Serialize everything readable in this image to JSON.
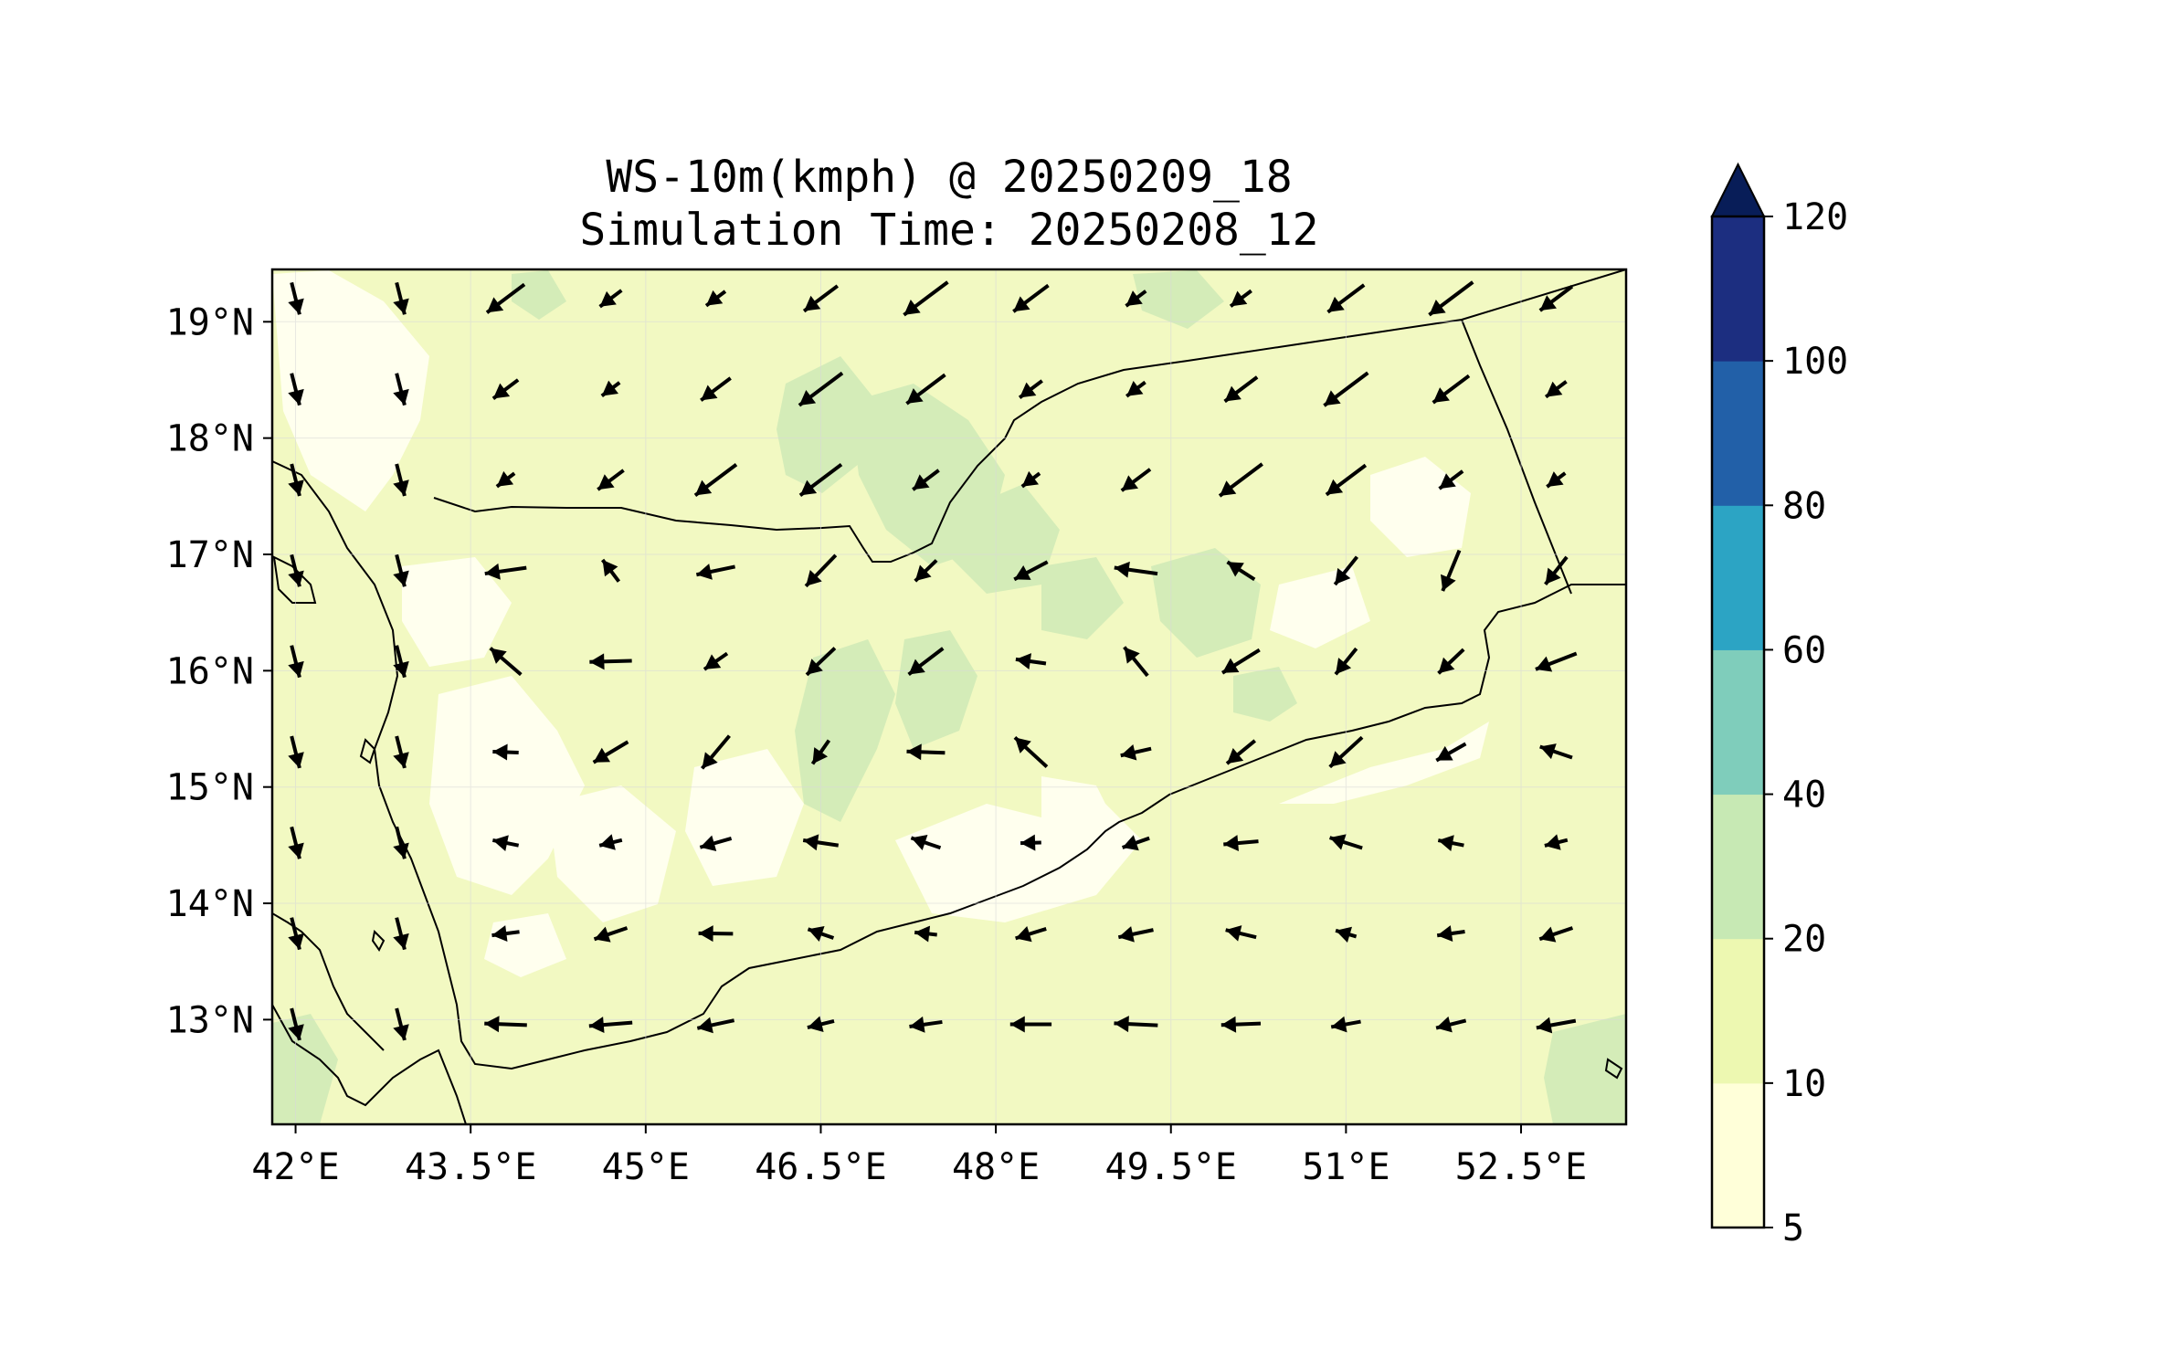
{
  "title": {
    "line1": "WS-10m(kmph) @ 20250209_18",
    "line2": "Simulation Time: 20250208_12"
  },
  "chart_data": {
    "type": "map",
    "variable": "WS-10m(kmph)",
    "valid_time": "20250209_18",
    "simulation_time": "20250208_12",
    "extent": {
      "lon": [
        41.8,
        53.4
      ],
      "lat": [
        12.1,
        19.45
      ]
    },
    "x_ticks": [
      {
        "value": 42.0,
        "label": "42°E"
      },
      {
        "value": 43.5,
        "label": "43.5°E"
      },
      {
        "value": 45.0,
        "label": "45°E"
      },
      {
        "value": 46.5,
        "label": "46.5°E"
      },
      {
        "value": 48.0,
        "label": "48°E"
      },
      {
        "value": 49.5,
        "label": "49.5°E"
      },
      {
        "value": 51.0,
        "label": "51°E"
      },
      {
        "value": 52.5,
        "label": "52.5°E"
      }
    ],
    "y_ticks": [
      {
        "value": 19,
        "label": "19°N"
      },
      {
        "value": 18,
        "label": "18°N"
      },
      {
        "value": 17,
        "label": "17°N"
      },
      {
        "value": 16,
        "label": "16°N"
      },
      {
        "value": 15,
        "label": "15°N"
      },
      {
        "value": 14,
        "label": "14°N"
      },
      {
        "value": 13,
        "label": "13°N"
      }
    ],
    "colorbar": {
      "levels": [
        5,
        10,
        20,
        40,
        60,
        80,
        100,
        120
      ],
      "labels": [
        "5",
        "10",
        "20",
        "40",
        "60",
        "80",
        "100",
        "120"
      ],
      "colors": [
        "#ffffd9",
        "#edf8b1",
        "#c7e9b4",
        "#7fcdbb",
        "#2ca4c4",
        "#2260a8",
        "#1c2e80"
      ],
      "extend_color": "#081d58",
      "extend": "max"
    },
    "wind_vectors_description": "Predominantly easterly/north-easterly winds; ~10-20 kmph over land, stronger easterlies over the Gulf of Aden"
  },
  "colors": {
    "land_base": "#f2f9c2",
    "calm": "#ffffee",
    "stronger": "#d4ecb8",
    "border": "#000000"
  }
}
